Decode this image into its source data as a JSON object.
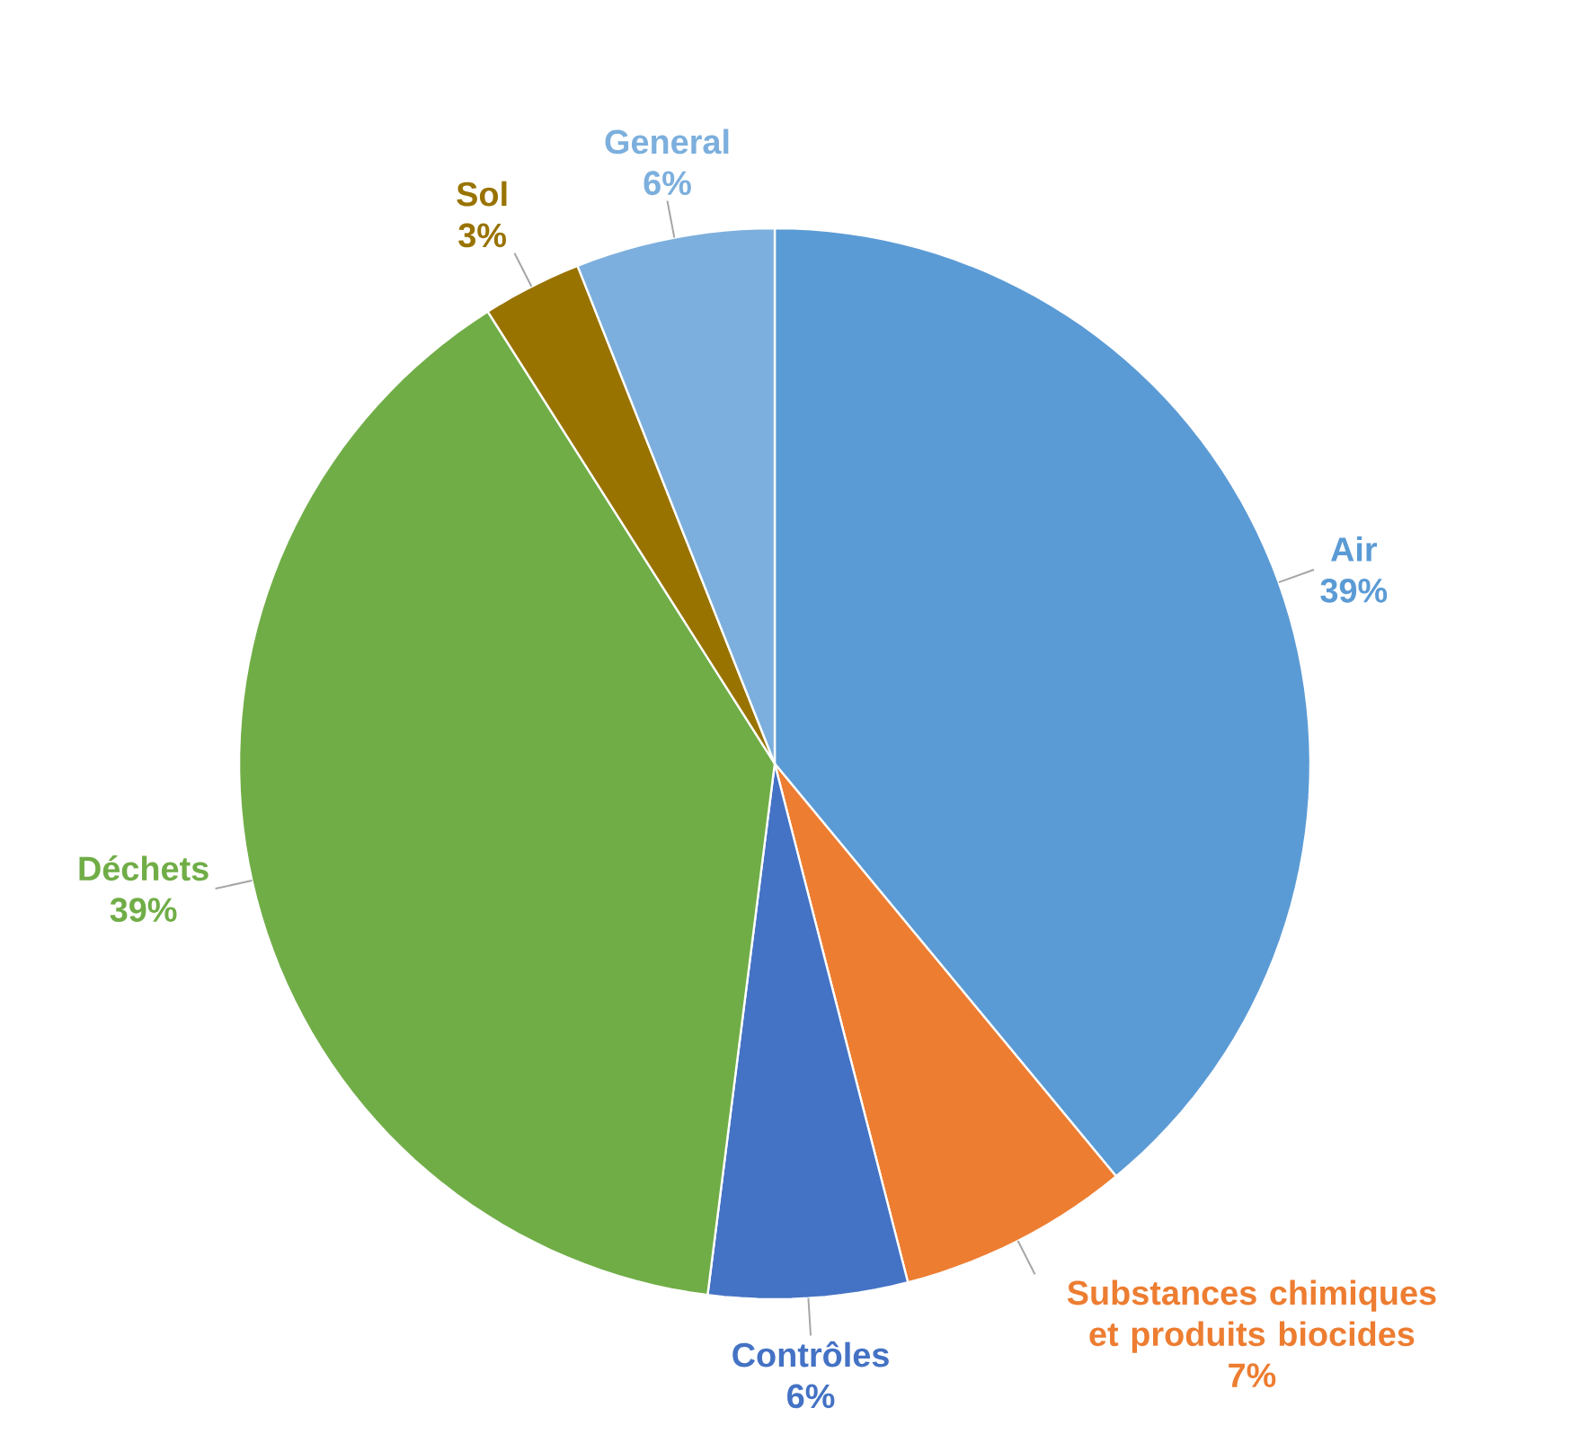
{
  "chart_data": {
    "type": "pie",
    "categories": [
      "Air",
      "Substances chimiques et produits biocides",
      "Contrôles",
      "Déchets",
      "Sol",
      "General"
    ],
    "values": [
      39,
      7,
      6,
      39,
      3,
      6
    ],
    "value_labels": [
      "39%",
      "7%",
      "6%",
      "39%",
      "3%",
      "6%"
    ],
    "colors": [
      "#5b9bd5",
      "#ed7d31",
      "#4472c4",
      "#70ad47",
      "#997300",
      "#7cafdd"
    ]
  }
}
